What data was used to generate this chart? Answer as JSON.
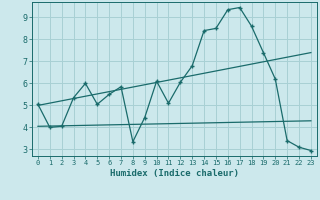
{
  "xlabel": "Humidex (Indice chaleur)",
  "bg_color": "#cce8ec",
  "grid_color": "#a8d0d4",
  "line_color": "#1a6b6b",
  "xlim": [
    -0.5,
    23.5
  ],
  "ylim": [
    2.7,
    9.7
  ],
  "xticks": [
    0,
    1,
    2,
    3,
    4,
    5,
    6,
    7,
    8,
    9,
    10,
    11,
    12,
    13,
    14,
    15,
    16,
    17,
    18,
    19,
    20,
    21,
    22,
    23
  ],
  "yticks": [
    3,
    4,
    5,
    6,
    7,
    8,
    9
  ],
  "line1_x": [
    0,
    1,
    2,
    3,
    4,
    5,
    6,
    7,
    8,
    9,
    10,
    11,
    12,
    13,
    14,
    15,
    16,
    17,
    18,
    19,
    20,
    21,
    22,
    23
  ],
  "line1_y": [
    5.05,
    4.0,
    4.05,
    5.35,
    6.0,
    5.05,
    5.5,
    5.85,
    3.35,
    4.45,
    6.1,
    5.1,
    6.05,
    6.8,
    8.4,
    8.5,
    9.35,
    9.45,
    8.6,
    7.4,
    6.2,
    3.4,
    3.1,
    2.95
  ],
  "line2_x": [
    0,
    23
  ],
  "line2_y": [
    5.0,
    7.4
  ],
  "line3_x": [
    0,
    23
  ],
  "line3_y": [
    4.05,
    4.3
  ]
}
